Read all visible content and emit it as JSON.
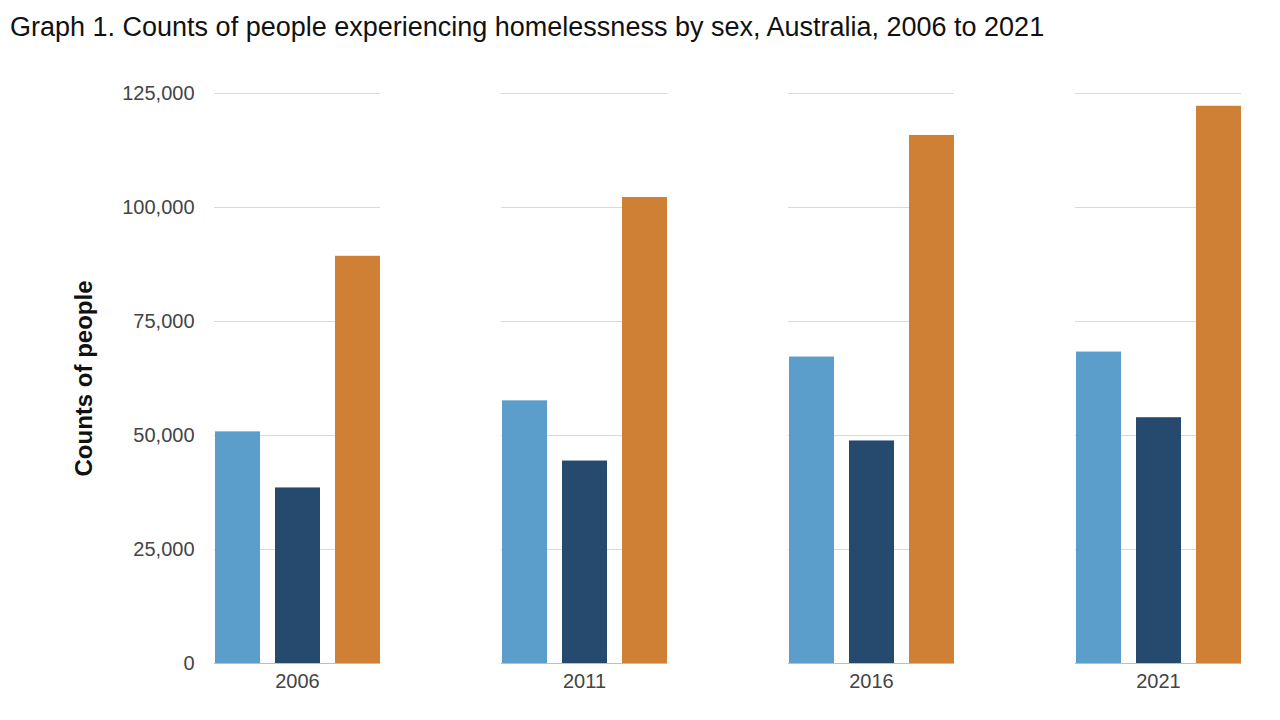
{
  "chart_data": {
    "type": "bar",
    "title": "Graph 1. Counts of people experiencing homelessness by sex, Australia, 2006 to 2021",
    "y_label": "Counts of people",
    "categories": [
      "2006",
      "2011",
      "2016",
      "2021"
    ],
    "series": [
      {
        "color": "#5b9dcb",
        "values": [
          50800,
          57600,
          67200,
          68300
        ]
      },
      {
        "color": "#264a6e",
        "values": [
          38500,
          44400,
          48800,
          53900
        ]
      },
      {
        "color": "#d08035",
        "values": [
          89300,
          102200,
          115800,
          122200
        ]
      }
    ],
    "ylim": [
      0,
      125000
    ],
    "yticks": [
      0,
      {
        "value": 25000,
        "label": "25,000"
      },
      {
        "value": 50000,
        "label": "50,000"
      },
      {
        "value": 75000,
        "label": "75,000"
      },
      {
        "value": 100000,
        "label": "100,000"
      },
      {
        "value": 125000,
        "label": "125,000"
      }
    ],
    "grid": true
  }
}
